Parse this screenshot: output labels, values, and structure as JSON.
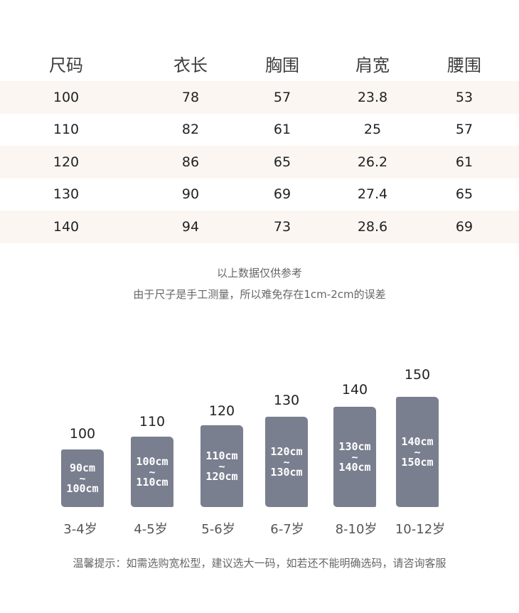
{
  "size_table": {
    "headers": [
      "尺码",
      "衣长",
      "胸围",
      "肩宽",
      "腰围"
    ],
    "rows": [
      [
        "100",
        "78",
        "57",
        "23.8",
        "53"
      ],
      [
        "110",
        "82",
        "61",
        "25",
        "57"
      ],
      [
        "120",
        "86",
        "65",
        "26.2",
        "61"
      ],
      [
        "130",
        "90",
        "69",
        "27.4",
        "65"
      ],
      [
        "140",
        "94",
        "73",
        "28.6",
        "69"
      ]
    ]
  },
  "notes": {
    "line1": "以上数据仅供参考",
    "line2": "由于尺子是手工测量，所以难免存在1cm-2cm的误差"
  },
  "height_chart": {
    "items": [
      {
        "size": "100",
        "range_from": "90cm",
        "sep": "~",
        "range_to": "100cm",
        "age": "3-4岁"
      },
      {
        "size": "110",
        "range_from": "100cm",
        "sep": "~",
        "range_to": "110cm",
        "age": "4-5岁"
      },
      {
        "size": "120",
        "range_from": "110cm",
        "sep": "~",
        "range_to": "120cm",
        "age": "5-6岁"
      },
      {
        "size": "130",
        "range_from": "120cm",
        "sep": "~",
        "range_to": "130cm",
        "age": "6-7岁"
      },
      {
        "size": "140",
        "range_from": "130cm",
        "sep": "~",
        "range_to": "140cm",
        "age": "8-10岁"
      },
      {
        "size": "150",
        "range_from": "140cm",
        "sep": "~",
        "range_to": "150cm",
        "age": "10-12岁"
      }
    ],
    "block_color": "#7a7f8f"
  },
  "tip": "温馨提示：如需选购宽松型，建议选大一码，如若还不能明确选码，请咨询客服"
}
